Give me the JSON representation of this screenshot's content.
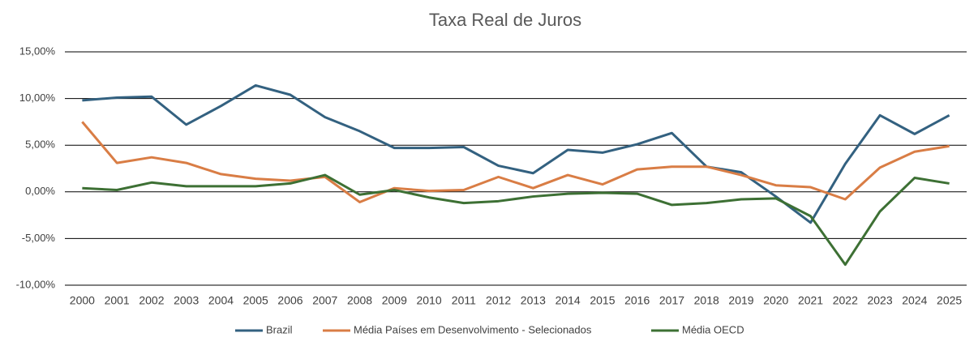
{
  "chart_data": {
    "type": "line",
    "title": "Taxa Real de Juros",
    "categories": [
      "2000",
      "2001",
      "2002",
      "2003",
      "2004",
      "2005",
      "2006",
      "2007",
      "2008",
      "2009",
      "2010",
      "2011",
      "2012",
      "2013",
      "2014",
      "2015",
      "2016",
      "2017",
      "2018",
      "2019",
      "2020",
      "2021",
      "2022",
      "2023",
      "2024",
      "2025"
    ],
    "series": [
      {
        "name": "Brazil",
        "color": "#336180",
        "values": [
          9.8,
          10.1,
          10.2,
          7.2,
          9.2,
          11.4,
          10.4,
          8.0,
          6.5,
          4.7,
          4.7,
          4.8,
          2.8,
          2.0,
          4.5,
          4.2,
          5.1,
          6.3,
          2.7,
          2.1,
          -0.5,
          -3.3,
          3.0,
          8.2,
          6.2,
          8.2
        ]
      },
      {
        "name": "Média Países em Desenvolvimento - Selecionados",
        "color": "#d97d45",
        "values": [
          7.5,
          3.1,
          3.7,
          3.1,
          1.9,
          1.4,
          1.2,
          1.6,
          -1.1,
          0.4,
          0.1,
          0.2,
          1.6,
          0.4,
          1.8,
          0.8,
          2.4,
          2.7,
          2.7,
          1.8,
          0.7,
          0.5,
          -0.8,
          2.6,
          4.3,
          4.9
        ]
      },
      {
        "name": "Média OECD",
        "color": "#3d7034",
        "values": [
          0.4,
          0.2,
          1.0,
          0.6,
          0.6,
          0.6,
          0.9,
          1.8,
          -0.3,
          0.2,
          -0.6,
          -1.2,
          -1.0,
          -0.5,
          -0.2,
          -0.1,
          -0.2,
          -1.4,
          -1.2,
          -0.8,
          -0.7,
          -2.6,
          -7.8,
          -2.1,
          1.5,
          0.9
        ]
      }
    ],
    "ylim": [
      -10,
      15
    ],
    "yticks": [
      {
        "value": -10,
        "label": "-10,00%"
      },
      {
        "value": -5,
        "label": "-5,00%"
      },
      {
        "value": 0,
        "label": "0,00%"
      },
      {
        "value": 5,
        "label": "5,00%"
      },
      {
        "value": 10,
        "label": "10,00%"
      },
      {
        "value": 15,
        "label": "15,00%"
      }
    ],
    "grid": true,
    "legend": "bottom"
  }
}
